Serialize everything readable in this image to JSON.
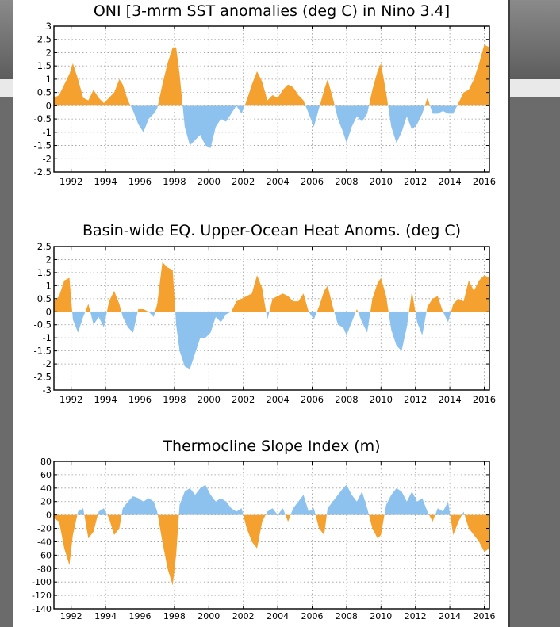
{
  "colors": {
    "positive": "#f5a12f",
    "negative": "#8ec2ee",
    "frame": "#000000",
    "grid": "#9a9a9a"
  },
  "chart_data": [
    {
      "type": "area",
      "title": "ONI [3-mrm SST anomalies (deg C) in Nino 3.4]",
      "xlabel": "",
      "ylabel": "",
      "xlim": [
        1991,
        2016.3
      ],
      "ylim": [
        -2.5,
        3
      ],
      "x_ticks": [
        1992,
        1994,
        1996,
        1998,
        2000,
        2002,
        2004,
        2006,
        2008,
        2010,
        2012,
        2014,
        2016
      ],
      "x_tick_labels": [
        "1992",
        "1994",
        "1996",
        "1998",
        "2000",
        "2002",
        "2004",
        "2006",
        "2008",
        "2010",
        "2012",
        "2014",
        "2016"
      ],
      "y_ticks": [
        -2.5,
        -2,
        -1.5,
        -1,
        -0.5,
        0,
        0.5,
        1,
        1.5,
        2,
        2.5,
        3
      ],
      "y_tick_labels": [
        "-2.5",
        "-2",
        "-1.5",
        "-1",
        "-0.5",
        "0",
        "0.5",
        "1",
        "1.5",
        "2",
        "2.5",
        "3"
      ],
      "grid": true,
      "fill": "orange above zero, blue below zero",
      "x": [
        1991.0,
        1991.3,
        1991.6,
        1991.9,
        1992.1,
        1992.4,
        1992.7,
        1993.0,
        1993.3,
        1993.6,
        1993.9,
        1994.2,
        1994.5,
        1994.8,
        1995.0,
        1995.3,
        1995.6,
        1995.9,
        1996.2,
        1996.5,
        1996.8,
        1997.0,
        1997.3,
        1997.6,
        1997.9,
        1998.1,
        1998.3,
        1998.6,
        1998.9,
        1999.2,
        1999.5,
        1999.8,
        2000.1,
        2000.4,
        2000.7,
        2001.0,
        2001.3,
        2001.6,
        2001.9,
        2002.2,
        2002.5,
        2002.8,
        2003.1,
        2003.4,
        2003.7,
        2004.0,
        2004.3,
        2004.6,
        2004.9,
        2005.2,
        2005.5,
        2005.8,
        2006.1,
        2006.4,
        2006.7,
        2006.9,
        2007.2,
        2007.5,
        2007.8,
        2008.0,
        2008.3,
        2008.6,
        2008.9,
        2009.2,
        2009.5,
        2009.8,
        2010.0,
        2010.3,
        2010.6,
        2010.9,
        2011.2,
        2011.5,
        2011.8,
        2012.1,
        2012.4,
        2012.7,
        2013.0,
        2013.3,
        2013.6,
        2013.9,
        2014.2,
        2014.5,
        2014.8,
        2015.1,
        2015.4,
        2015.7,
        2016.0,
        2016.3
      ],
      "values": [
        0.3,
        0.4,
        0.8,
        1.2,
        1.6,
        1.0,
        0.3,
        0.2,
        0.6,
        0.3,
        0.1,
        0.3,
        0.5,
        1.0,
        0.8,
        0.2,
        -0.2,
        -0.7,
        -1.0,
        -0.5,
        -0.3,
        -0.1,
        0.8,
        1.6,
        2.2,
        2.2,
        1.2,
        -0.8,
        -1.5,
        -1.3,
        -1.1,
        -1.5,
        -1.6,
        -0.8,
        -0.5,
        -0.6,
        -0.3,
        0.0,
        -0.3,
        0.2,
        0.8,
        1.3,
        0.9,
        0.2,
        0.4,
        0.3,
        0.6,
        0.8,
        0.7,
        0.4,
        0.2,
        -0.3,
        -0.8,
        -0.1,
        0.6,
        1.0,
        0.3,
        -0.5,
        -1.0,
        -1.4,
        -0.8,
        -0.4,
        -0.6,
        -0.3,
        0.6,
        1.3,
        1.6,
        0.5,
        -0.8,
        -1.4,
        -1.0,
        -0.4,
        -0.9,
        -0.7,
        -0.3,
        0.3,
        -0.3,
        -0.3,
        -0.2,
        -0.3,
        -0.3,
        0.1,
        0.5,
        0.6,
        1.0,
        1.6,
        2.3,
        2.2
      ]
    },
    {
      "type": "area",
      "title": "Basin-wide EQ. Upper-Ocean Heat Anoms. (deg C)",
      "xlabel": "",
      "ylabel": "",
      "xlim": [
        1991,
        2016.3
      ],
      "ylim": [
        -3,
        2.5
      ],
      "x_ticks": [
        1992,
        1994,
        1996,
        1998,
        2000,
        2002,
        2004,
        2006,
        2008,
        2010,
        2012,
        2014,
        2016
      ],
      "x_tick_labels": [
        "1992",
        "1994",
        "1996",
        "1998",
        "2000",
        "2002",
        "2004",
        "2006",
        "2008",
        "2010",
        "2012",
        "2014",
        "2016"
      ],
      "y_ticks": [
        -3,
        -2.5,
        -2,
        -1.5,
        -1,
        -0.5,
        0,
        0.5,
        1,
        1.5,
        2,
        2.5
      ],
      "y_tick_labels": [
        "-3",
        "-2.5",
        "-2",
        "-1.5",
        "-1",
        "-0.5",
        "0",
        "0.5",
        "1",
        "1.5",
        "2",
        "2.5"
      ],
      "grid": true,
      "fill": "orange above zero, blue below zero",
      "x": [
        1991.0,
        1991.3,
        1991.6,
        1991.9,
        1992.1,
        1992.4,
        1992.7,
        1993.0,
        1993.3,
        1993.6,
        1993.9,
        1994.2,
        1994.5,
        1994.8,
        1995.0,
        1995.3,
        1995.6,
        1995.9,
        1996.2,
        1996.5,
        1996.8,
        1997.0,
        1997.3,
        1997.6,
        1997.9,
        1998.1,
        1998.3,
        1998.6,
        1998.9,
        1999.2,
        1999.5,
        1999.8,
        2000.1,
        2000.4,
        2000.7,
        2001.0,
        2001.3,
        2001.6,
        2001.9,
        2002.2,
        2002.5,
        2002.8,
        2003.1,
        2003.4,
        2003.7,
        2004.0,
        2004.3,
        2004.6,
        2004.9,
        2005.2,
        2005.5,
        2005.8,
        2006.1,
        2006.4,
        2006.7,
        2006.9,
        2007.2,
        2007.5,
        2007.8,
        2008.0,
        2008.3,
        2008.6,
        2008.9,
        2009.2,
        2009.5,
        2009.8,
        2010.0,
        2010.3,
        2010.6,
        2010.9,
        2011.2,
        2011.5,
        2011.8,
        2012.1,
        2012.4,
        2012.7,
        2013.0,
        2013.3,
        2013.6,
        2013.9,
        2014.2,
        2014.5,
        2014.8,
        2015.1,
        2015.4,
        2015.7,
        2016.0,
        2016.3
      ],
      "values": [
        0.4,
        0.6,
        1.2,
        1.3,
        -0.3,
        -0.8,
        -0.2,
        0.3,
        -0.5,
        -0.2,
        -0.6,
        0.4,
        0.8,
        0.3,
        -0.2,
        -0.6,
        -0.8,
        0.1,
        0.1,
        0.0,
        -0.2,
        0.3,
        1.9,
        1.7,
        1.6,
        -0.5,
        -1.5,
        -2.1,
        -2.2,
        -1.6,
        -1.0,
        -1.0,
        -0.8,
        -0.2,
        -0.4,
        -0.1,
        0.0,
        0.4,
        0.5,
        0.6,
        0.7,
        1.4,
        0.9,
        -0.3,
        0.5,
        0.6,
        0.7,
        0.6,
        0.4,
        0.4,
        0.7,
        0.0,
        -0.3,
        0.2,
        0.8,
        1.0,
        0.2,
        -0.5,
        -0.6,
        -0.9,
        -0.4,
        0.1,
        -0.4,
        -0.8,
        0.5,
        1.1,
        1.3,
        0.6,
        -0.7,
        -1.3,
        -1.5,
        -0.6,
        0.8,
        -0.4,
        -0.9,
        0.2,
        0.5,
        0.6,
        0.0,
        -0.4,
        0.3,
        0.5,
        0.4,
        1.2,
        0.8,
        1.2,
        1.4,
        1.3
      ]
    },
    {
      "type": "area",
      "title": "Thermocline Slope Index (m)",
      "xlabel": "",
      "ylabel": "",
      "xlim": [
        1991,
        2016.3
      ],
      "ylim": [
        -140,
        80
      ],
      "x_ticks": [
        1992,
        1994,
        1996,
        1998,
        2000,
        2002,
        2004,
        2006,
        2008,
        2010,
        2012,
        2014,
        2016
      ],
      "x_tick_labels": [
        "1992",
        "1994",
        "1996",
        "1998",
        "2000",
        "2002",
        "2004",
        "2006",
        "2008",
        "2010",
        "2012",
        "2014",
        "2016"
      ],
      "y_ticks": [
        -140,
        -120,
        -100,
        -80,
        -60,
        -40,
        -20,
        0,
        20,
        40,
        60,
        80
      ],
      "y_tick_labels": [
        "-140",
        "-120",
        "-100",
        "-80",
        "-60",
        "-40",
        "-20",
        "0",
        "20",
        "40",
        "60",
        "80"
      ],
      "grid": true,
      "fill": "orange below zero, blue above zero",
      "x": [
        1991.0,
        1991.3,
        1991.6,
        1991.9,
        1992.1,
        1992.4,
        1992.7,
        1993.0,
        1993.3,
        1993.6,
        1993.9,
        1994.2,
        1994.5,
        1994.8,
        1995.0,
        1995.3,
        1995.6,
        1995.9,
        1996.2,
        1996.5,
        1996.8,
        1997.0,
        1997.3,
        1997.6,
        1997.9,
        1998.1,
        1998.3,
        1998.6,
        1998.9,
        1999.2,
        1999.5,
        1999.8,
        2000.1,
        2000.4,
        2000.7,
        2001.0,
        2001.3,
        2001.6,
        2001.9,
        2002.2,
        2002.5,
        2002.8,
        2003.1,
        2003.4,
        2003.7,
        2004.0,
        2004.3,
        2004.6,
        2004.9,
        2005.2,
        2005.5,
        2005.8,
        2006.1,
        2006.4,
        2006.7,
        2006.9,
        2007.2,
        2007.5,
        2007.8,
        2008.0,
        2008.3,
        2008.6,
        2008.9,
        2009.2,
        2009.5,
        2009.8,
        2010.0,
        2010.3,
        2010.6,
        2010.9,
        2011.2,
        2011.5,
        2011.8,
        2012.1,
        2012.4,
        2012.7,
        2013.0,
        2013.3,
        2013.6,
        2013.9,
        2014.2,
        2014.5,
        2014.8,
        2015.1,
        2015.4,
        2015.7,
        2016.0,
        2016.3
      ],
      "values": [
        -5,
        -10,
        -50,
        -75,
        -30,
        5,
        10,
        -35,
        -25,
        5,
        10,
        -5,
        -30,
        -20,
        10,
        20,
        28,
        25,
        20,
        25,
        20,
        5,
        -40,
        -80,
        -105,
        -60,
        15,
        35,
        40,
        30,
        40,
        45,
        30,
        20,
        25,
        20,
        10,
        5,
        10,
        -20,
        -40,
        -50,
        -10,
        5,
        10,
        0,
        10,
        -10,
        10,
        20,
        30,
        5,
        10,
        -20,
        -30,
        10,
        20,
        30,
        40,
        45,
        30,
        20,
        35,
        10,
        -20,
        -35,
        -30,
        15,
        30,
        40,
        35,
        20,
        35,
        20,
        25,
        5,
        -10,
        10,
        5,
        20,
        -30,
        -10,
        5,
        -20,
        -30,
        -40,
        -55,
        -50
      ]
    }
  ]
}
